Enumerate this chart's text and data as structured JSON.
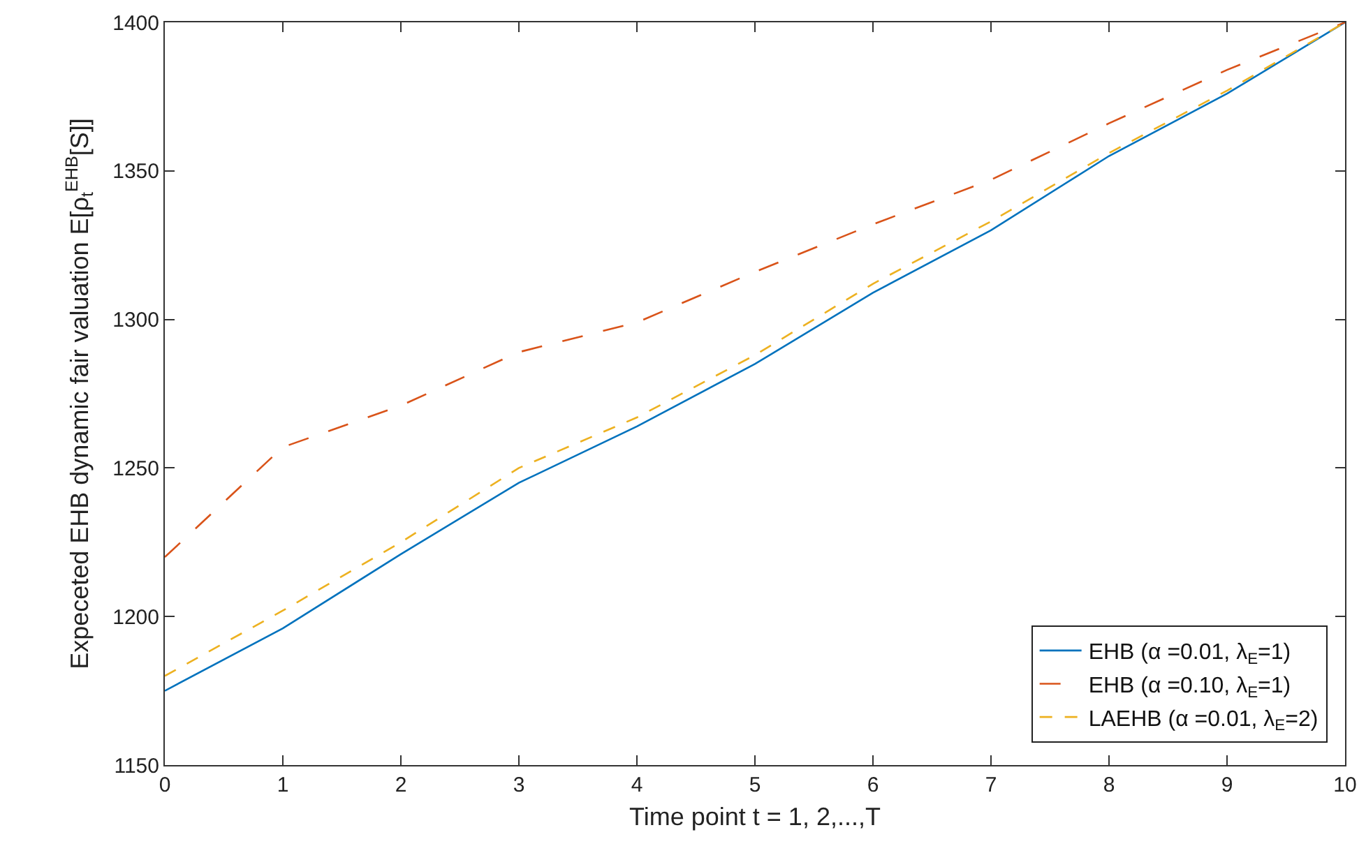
{
  "chart_data": {
    "type": "line",
    "xlabel": "Time point t = 1, 2,...,T",
    "ylabel": "Expeceted EHB dynamic fair valuation E[ρ$_{t}$$^{EHB}$[S]]",
    "x": [
      0,
      1,
      2,
      3,
      4,
      5,
      6,
      7,
      8,
      9,
      10
    ],
    "series": [
      {
        "name": "EHB (α =0.01, λ$_{E}$=1)",
        "color": "#0072bd",
        "line_style": "solid",
        "values": [
          1175,
          1196,
          1221,
          1245,
          1264,
          1285,
          1309,
          1330,
          1355,
          1376,
          1400
        ]
      },
      {
        "name": "EHB (α =0.10, λ$_{E}$=1)",
        "color": "#d95319",
        "line_style": "dashed",
        "values": [
          1220,
          1257,
          1271,
          1289,
          1299,
          1316,
          1332,
          1347,
          1366,
          1384,
          1400
        ]
      },
      {
        "name": "LAEHB (α =0.01, λ$_{E}$=2)",
        "color": "#edb120",
        "line_style": "dashed",
        "values": [
          1180,
          1202,
          1225,
          1250,
          1267,
          1288,
          1312,
          1333,
          1356,
          1377,
          1400
        ]
      }
    ],
    "xlim": [
      0,
      10
    ],
    "xticks": [
      0,
      1,
      2,
      3,
      4,
      5,
      6,
      7,
      8,
      9,
      10
    ],
    "ylim": [
      1150,
      1400
    ],
    "yticks": [
      1150,
      1200,
      1250,
      1300,
      1350,
      1400
    ],
    "grid": false,
    "legend": "bottom right"
  }
}
